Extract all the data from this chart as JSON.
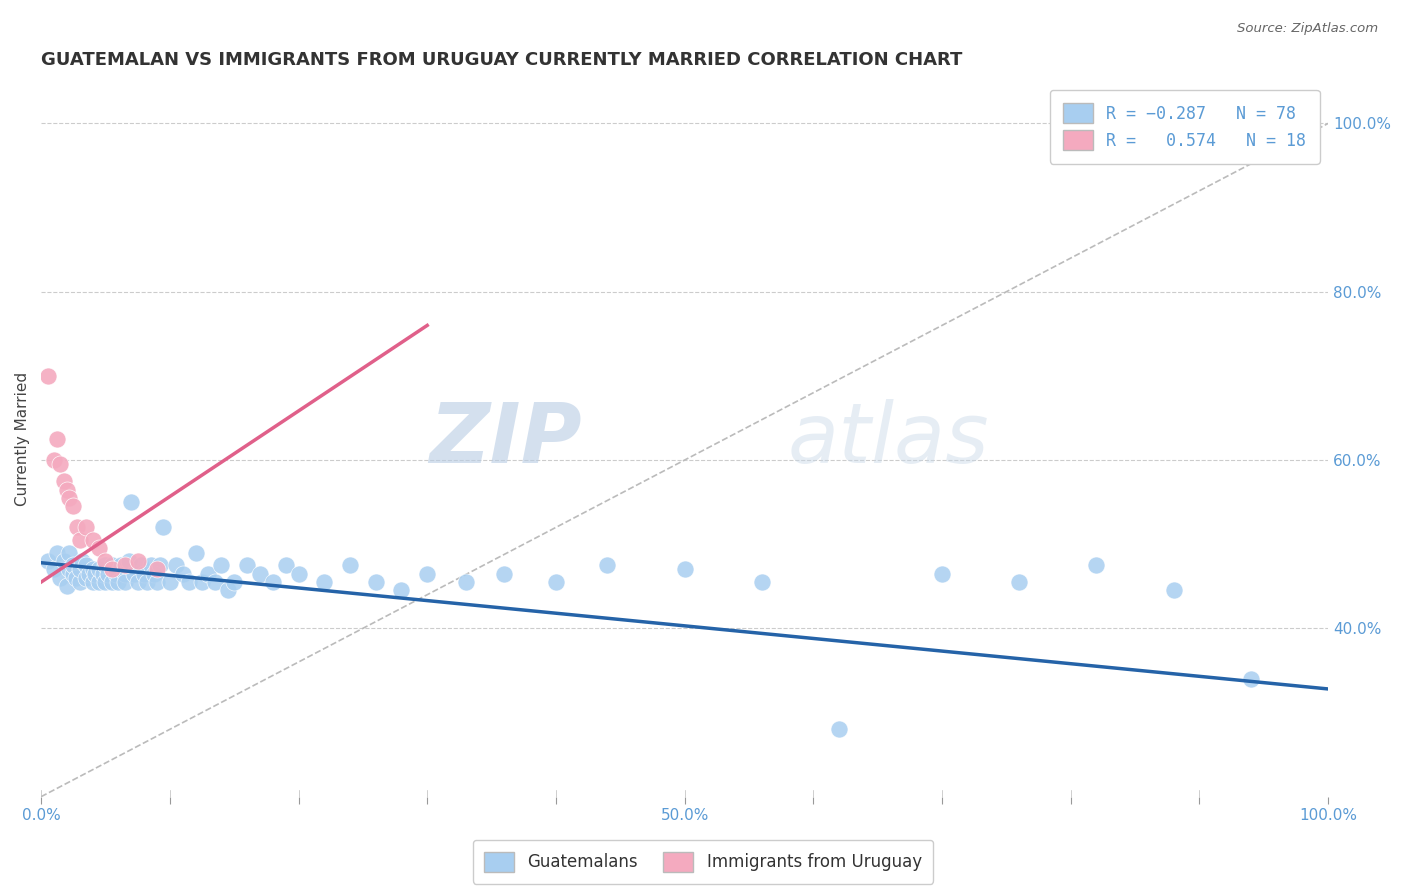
{
  "title": "GUATEMALAN VS IMMIGRANTS FROM URUGUAY CURRENTLY MARRIED CORRELATION CHART",
  "source": "Source: ZipAtlas.com",
  "ylabel": "Currently Married",
  "right_yticks": [
    "100.0%",
    "80.0%",
    "60.0%",
    "40.0%"
  ],
  "right_ytick_vals": [
    1.0,
    0.8,
    0.6,
    0.4
  ],
  "watermark_zip": "ZIP",
  "watermark_atlas": "atlas",
  "blue_color": "#A8CEF0",
  "pink_color": "#F4AABF",
  "blue_line_color": "#2563A8",
  "pink_line_color": "#E0608A",
  "diag_line_color": "#BBBBBB",
  "blue_scatter_x": [
    0.005,
    0.01,
    0.012,
    0.015,
    0.018,
    0.02,
    0.022,
    0.022,
    0.025,
    0.025,
    0.027,
    0.03,
    0.03,
    0.032,
    0.035,
    0.035,
    0.037,
    0.04,
    0.04,
    0.042,
    0.045,
    0.045,
    0.048,
    0.05,
    0.05,
    0.052,
    0.055,
    0.055,
    0.058,
    0.06,
    0.062,
    0.065,
    0.065,
    0.068,
    0.07,
    0.072,
    0.075,
    0.078,
    0.08,
    0.082,
    0.085,
    0.088,
    0.09,
    0.092,
    0.095,
    0.1,
    0.105,
    0.11,
    0.115,
    0.12,
    0.125,
    0.13,
    0.135,
    0.14,
    0.145,
    0.15,
    0.16,
    0.17,
    0.18,
    0.19,
    0.2,
    0.22,
    0.24,
    0.26,
    0.28,
    0.3,
    0.33,
    0.36,
    0.4,
    0.44,
    0.5,
    0.56,
    0.62,
    0.7,
    0.76,
    0.82,
    0.88,
    0.94
  ],
  "blue_scatter_y": [
    0.48,
    0.47,
    0.49,
    0.46,
    0.48,
    0.45,
    0.47,
    0.49,
    0.465,
    0.475,
    0.46,
    0.455,
    0.47,
    0.48,
    0.46,
    0.475,
    0.465,
    0.455,
    0.47,
    0.465,
    0.455,
    0.47,
    0.465,
    0.455,
    0.475,
    0.465,
    0.455,
    0.475,
    0.465,
    0.455,
    0.475,
    0.465,
    0.455,
    0.48,
    0.55,
    0.465,
    0.455,
    0.475,
    0.465,
    0.455,
    0.475,
    0.465,
    0.455,
    0.475,
    0.52,
    0.455,
    0.475,
    0.465,
    0.455,
    0.49,
    0.455,
    0.465,
    0.455,
    0.475,
    0.445,
    0.455,
    0.475,
    0.465,
    0.455,
    0.475,
    0.465,
    0.455,
    0.475,
    0.455,
    0.445,
    0.465,
    0.455,
    0.465,
    0.455,
    0.475,
    0.47,
    0.455,
    0.28,
    0.465,
    0.455,
    0.475,
    0.445,
    0.34
  ],
  "pink_scatter_x": [
    0.005,
    0.01,
    0.012,
    0.015,
    0.018,
    0.02,
    0.022,
    0.025,
    0.028,
    0.03,
    0.035,
    0.04,
    0.045,
    0.05,
    0.055,
    0.065,
    0.075,
    0.09
  ],
  "pink_scatter_y": [
    0.7,
    0.6,
    0.625,
    0.595,
    0.575,
    0.565,
    0.555,
    0.545,
    0.52,
    0.505,
    0.52,
    0.505,
    0.495,
    0.48,
    0.47,
    0.475,
    0.48,
    0.47
  ],
  "blue_trend_x": [
    0.0,
    1.0
  ],
  "blue_trend_y": [
    0.478,
    0.328
  ],
  "pink_trend_x": [
    0.0,
    0.3
  ],
  "pink_trend_y": [
    0.455,
    0.76
  ],
  "xlim": [
    0.0,
    1.0
  ],
  "ylim": [
    0.2,
    1.05
  ],
  "x_bottom_ticks": [
    0.0,
    0.1,
    0.2,
    0.3,
    0.4,
    0.5,
    0.6,
    0.7,
    0.8,
    0.9,
    1.0
  ],
  "x_bottom_labels": [
    "0.0%",
    "",
    "",
    "",
    "",
    "50.0%",
    "",
    "",
    "",
    "",
    "100.0%"
  ]
}
